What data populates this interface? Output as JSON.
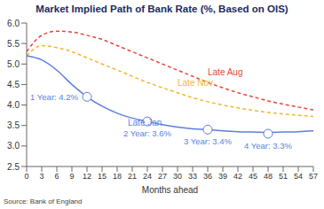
{
  "chart_data": {
    "type": "line",
    "title": "Market Implied Path of Bank Rate (%, Based on OIS)",
    "source": "Source: Bank of England",
    "x_label": "Months ahead",
    "x": [
      0,
      3,
      6,
      9,
      12,
      15,
      18,
      21,
      24,
      27,
      30,
      33,
      36,
      39,
      42,
      45,
      48,
      51,
      54,
      57
    ],
    "series": [
      {
        "name": "Late Aug",
        "color": "#e8473b",
        "line_style": "dashed",
        "values": [
          5.3,
          5.7,
          5.8,
          5.78,
          5.7,
          5.6,
          5.45,
          5.3,
          5.15,
          5.0,
          4.85,
          4.7,
          4.55,
          4.42,
          4.3,
          4.2,
          4.1,
          4.02,
          3.95,
          3.88
        ]
      },
      {
        "name": "Late Nov",
        "color": "#f2b632",
        "line_style": "dashed",
        "values": [
          5.2,
          5.45,
          5.4,
          5.3,
          5.15,
          5.0,
          4.85,
          4.7,
          4.55,
          4.42,
          4.3,
          4.18,
          4.08,
          4.0,
          3.93,
          3.87,
          3.82,
          3.78,
          3.75,
          3.72
        ]
      },
      {
        "name": "Late Jan",
        "color": "#5b7fde",
        "line_style": "solid",
        "values": [
          5.2,
          5.1,
          4.85,
          4.5,
          4.2,
          3.97,
          3.8,
          3.68,
          3.6,
          3.52,
          3.46,
          3.42,
          3.4,
          3.37,
          3.35,
          3.34,
          3.33,
          3.34,
          3.35,
          3.37
        ]
      }
    ],
    "annotations": [
      {
        "text": "1 Year: 4.2%",
        "x": 12,
        "y": 4.2
      },
      {
        "text": "2 Year: 3.6%",
        "x": 24,
        "y": 3.6
      },
      {
        "text": "3 Year: 3.4%",
        "x": 36,
        "y": 3.4
      },
      {
        "text": "4 Year: 3.3%",
        "x": 48,
        "y": 3.3
      }
    ],
    "xlim": [
      0,
      57
    ],
    "xticks": [
      0,
      3,
      6,
      9,
      12,
      15,
      18,
      21,
      24,
      27,
      30,
      33,
      36,
      39,
      42,
      45,
      48,
      51,
      54,
      57
    ],
    "ylim": [
      2.5,
      6
    ],
    "yticks": [
      2.5,
      {
        "value": 3,
        "label": "3.0"
      },
      3.5,
      {
        "value": 4,
        "label": "4.0"
      },
      4.5,
      {
        "value": 5,
        "label": "5.0"
      },
      5.5,
      {
        "value": 6,
        "label": "6.0"
      }
    ],
    "grid": false,
    "legend": "none"
  }
}
